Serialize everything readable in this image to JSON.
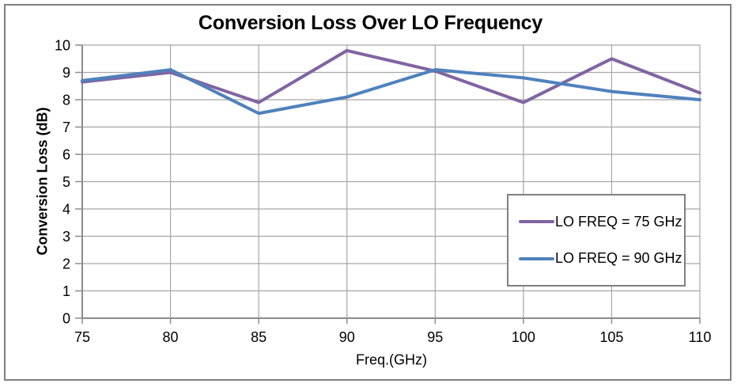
{
  "window": {
    "background_color": "#FFFFFF",
    "frame_border_color": "#7F7F7F"
  },
  "chart_data": {
    "type": "line",
    "title": "Conversion Loss Over LO Frequency",
    "xlabel": "Freq.(GHz)",
    "ylabel": "Conversion Loss (dB)",
    "x": [
      75,
      80,
      85,
      90,
      95,
      100,
      105,
      110
    ],
    "xlim": [
      75,
      110
    ],
    "ylim": [
      0,
      10
    ],
    "x_tick_step": 5,
    "y_tick_step": 1,
    "grid": true,
    "legend_position": "inside-right",
    "series": [
      {
        "name": "LO FREQ = 75 GHz",
        "color": "#8064A2",
        "values": [
          8.65,
          9.0,
          7.9,
          9.8,
          9.05,
          7.9,
          9.5,
          8.25
        ]
      },
      {
        "name": "LO FREQ = 90 GHz",
        "color": "#4F81BD",
        "values": [
          8.7,
          9.1,
          7.5,
          8.1,
          9.1,
          8.8,
          8.3,
          8.0
        ]
      }
    ],
    "styles": {
      "gridline_color": "#A6A6A6",
      "axis_color": "#8C8C8C",
      "text_color": "#000000",
      "legend_border_color": "#808080",
      "line_width": 4
    }
  }
}
